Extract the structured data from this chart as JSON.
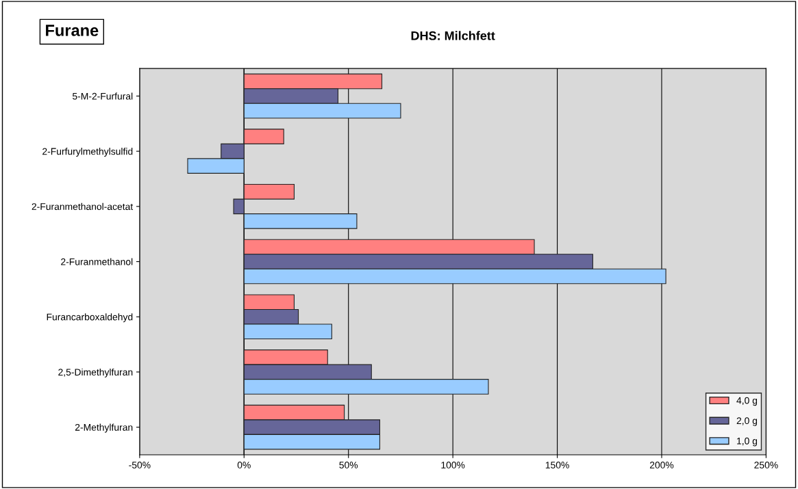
{
  "chart_data": {
    "type": "bar",
    "orientation": "horizontal",
    "title": "DHS: Milchfett",
    "annotations": [
      "Furane"
    ],
    "categories": [
      "5-M-2-Furfural",
      "2-Furfurylmethylsulfid",
      "2-Furanmethanol-acetat",
      "2-Furanmethanol",
      "Furancarboxaldehyd",
      "2,5-Dimethylfuran",
      "2-Methylfuran"
    ],
    "series": [
      {
        "name": "4,0 g",
        "color": "#ff8080",
        "values": [
          66,
          19,
          24,
          139,
          24,
          40,
          48
        ]
      },
      {
        "name": "2,0 g",
        "color": "#666699",
        "values": [
          45,
          -11,
          -5,
          167,
          26,
          61,
          65
        ]
      },
      {
        "name": "1,0 g",
        "color": "#99ccff",
        "values": [
          75,
          -27,
          54,
          202,
          42,
          117,
          65
        ]
      }
    ],
    "xlim": [
      -50,
      250
    ],
    "xticks": [
      {
        "value": -50,
        "label": "-50%"
      },
      {
        "value": 0,
        "label": "0%"
      },
      {
        "value": 50,
        "label": "50%"
      },
      {
        "value": 100,
        "label": "100%"
      },
      {
        "value": 150,
        "label": "150%"
      },
      {
        "value": 200,
        "label": "200%"
      },
      {
        "value": 250,
        "label": "250%"
      }
    ],
    "grid": "x",
    "legend": "bottom right"
  }
}
